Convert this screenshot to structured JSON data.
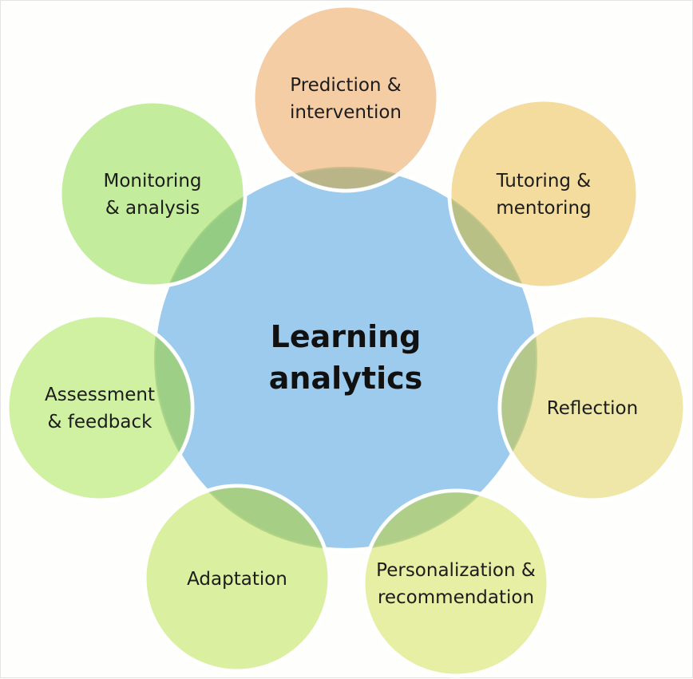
{
  "diagram": {
    "center": {
      "lines": [
        "Learning",
        "analytics"
      ],
      "color": "#9ccbee"
    },
    "nodes": [
      {
        "id": "prediction",
        "lines": [
          "Prediction &",
          "intervention"
        ],
        "color": "#f3c290"
      },
      {
        "id": "tutoring",
        "lines": [
          "Tutoring &",
          "mentoring"
        ],
        "color": "#f0d489"
      },
      {
        "id": "reflection",
        "lines": [
          "Reflection"
        ],
        "color": "#eae294"
      },
      {
        "id": "personalization",
        "lines": [
          "Personalization &",
          "recommendation"
        ],
        "color": "#e1ec8f"
      },
      {
        "id": "adaptation",
        "lines": [
          "Adaptation"
        ],
        "color": "#d2ec8a"
      },
      {
        "id": "assessment",
        "lines": [
          "Assessment",
          "& feedback"
        ],
        "color": "#c4ee8c"
      },
      {
        "id": "monitoring",
        "lines": [
          "Monitoring",
          "& analysis"
        ],
        "color": "#b6e986"
      }
    ]
  }
}
